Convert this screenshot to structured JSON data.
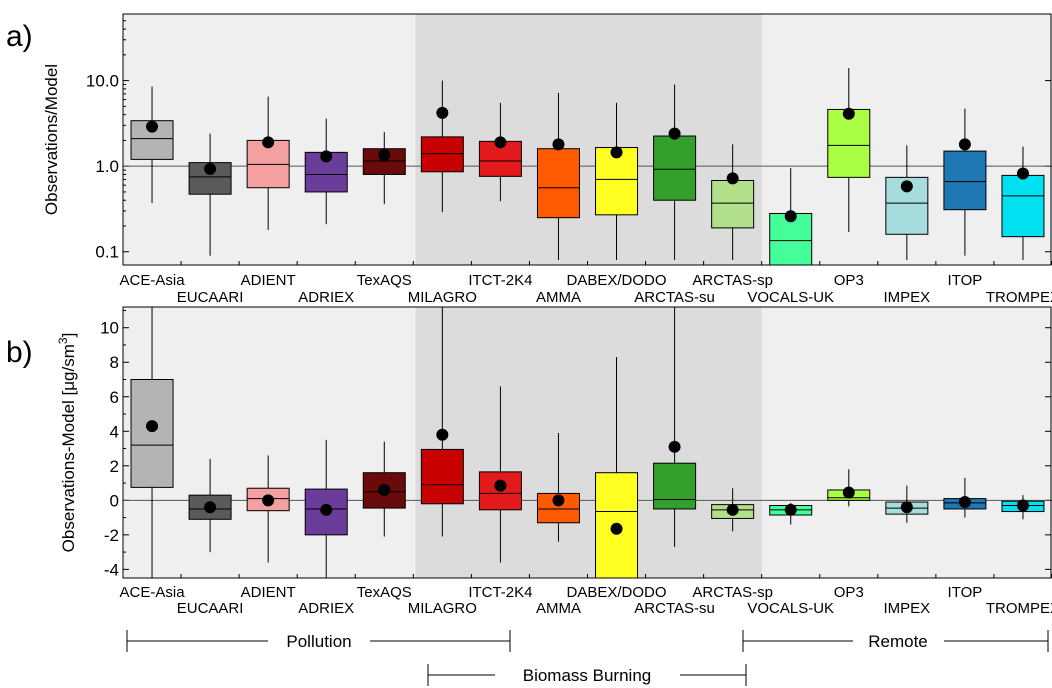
{
  "chart_data": [
    {
      "type": "box",
      "panel_label": "a)",
      "ylabel": "Observations/Model",
      "yscale": "log",
      "ylim": [
        0.07,
        60
      ],
      "yticks": [
        0.1,
        1.0,
        10.0
      ],
      "ytick_labels": [
        "0.1",
        "1.0",
        "10.0"
      ],
      "reference_line": 1.0,
      "categories": [
        "ACE-Asia",
        "EUCAARI",
        "ADIENT",
        "ADRIEX",
        "TexAQS",
        "MILAGRO",
        "ITCT-2K4",
        "AMMA",
        "DABEX/DODO",
        "ARCTAS-su",
        "ARCTAS-sp",
        "VOCALS-UK",
        "OP3",
        "IMPEX",
        "ITOP",
        "TROMPEX"
      ],
      "colors": [
        "#b4b4b4",
        "#5a5a5a",
        "#f4a0a0",
        "#6a3d9a",
        "#6b0a0a",
        "#c80000",
        "#e31a1c",
        "#ff5a00",
        "#ffff22",
        "#33a02c",
        "#b2df8a",
        "#44ff99",
        "#aaff44",
        "#a6dcdc",
        "#1f78b4",
        "#00e0f0"
      ],
      "series": [
        {
          "name": "ACE-Asia",
          "whisker_low": 0.37,
          "q1": 1.2,
          "median": 2.1,
          "q3": 3.4,
          "whisker_high": 8.5,
          "mean": 2.9
        },
        {
          "name": "EUCAARI",
          "whisker_low": 0.09,
          "q1": 0.47,
          "median": 0.75,
          "q3": 1.1,
          "whisker_high": 2.4,
          "mean": 0.93
        },
        {
          "name": "ADIENT",
          "whisker_low": 0.18,
          "q1": 0.56,
          "median": 1.05,
          "q3": 2.0,
          "whisker_high": 6.5,
          "mean": 1.9
        },
        {
          "name": "ADRIEX",
          "whisker_low": 0.21,
          "q1": 0.5,
          "median": 0.8,
          "q3": 1.45,
          "whisker_high": 3.6,
          "mean": 1.3
        },
        {
          "name": "TexAQS",
          "whisker_low": 0.36,
          "q1": 0.8,
          "median": 1.15,
          "q3": 1.6,
          "whisker_high": 2.5,
          "mean": 1.35
        },
        {
          "name": "MILAGRO",
          "whisker_low": 0.29,
          "q1": 0.86,
          "median": 1.4,
          "q3": 2.2,
          "whisker_high": 10.0,
          "mean": 4.2
        },
        {
          "name": "ITCT-2K4",
          "whisker_low": 0.39,
          "q1": 0.76,
          "median": 1.15,
          "q3": 1.95,
          "whisker_high": 5.5,
          "mean": 1.9
        },
        {
          "name": "AMMA",
          "whisker_low": 0.08,
          "q1": 0.25,
          "median": 0.56,
          "q3": 1.6,
          "whisker_high": 7.2,
          "mean": 1.8
        },
        {
          "name": "DABEX/DODO",
          "whisker_low": 0.08,
          "q1": 0.27,
          "median": 0.7,
          "q3": 1.65,
          "whisker_high": 5.5,
          "mean": 1.45
        },
        {
          "name": "ARCTAS-su",
          "whisker_low": 0.08,
          "q1": 0.4,
          "median": 0.92,
          "q3": 2.25,
          "whisker_high": 9.0,
          "mean": 2.4
        },
        {
          "name": "ARCTAS-sp",
          "whisker_low": 0.08,
          "q1": 0.19,
          "median": 0.37,
          "q3": 0.68,
          "whisker_high": 1.8,
          "mean": 0.72
        },
        {
          "name": "VOCALS-UK",
          "whisker_low": 0.07,
          "q1": 0.07,
          "median": 0.135,
          "q3": 0.28,
          "whisker_high": 0.95,
          "mean": 0.26
        },
        {
          "name": "OP3",
          "whisker_low": 0.17,
          "q1": 0.74,
          "median": 1.75,
          "q3": 4.6,
          "whisker_high": 14.0,
          "mean": 4.1
        },
        {
          "name": "IMPEX",
          "whisker_low": 0.08,
          "q1": 0.16,
          "median": 0.37,
          "q3": 0.74,
          "whisker_high": 1.75,
          "mean": 0.58
        },
        {
          "name": "ITOP",
          "whisker_low": 0.09,
          "q1": 0.31,
          "median": 0.66,
          "q3": 1.5,
          "whisker_high": 4.7,
          "mean": 1.8
        },
        {
          "name": "TROMPEX",
          "whisker_low": 0.08,
          "q1": 0.15,
          "median": 0.45,
          "q3": 0.78,
          "whisker_high": 1.7,
          "mean": 0.82
        }
      ]
    },
    {
      "type": "box",
      "panel_label": "b)",
      "ylabel_parts": [
        "Observations-Model [",
        "μg/sm",
        "3",
        "]"
      ],
      "yscale": "linear",
      "ylim": [
        -4.5,
        11.2
      ],
      "yticks": [
        -4,
        -2,
        0,
        2,
        4,
        6,
        8,
        10
      ],
      "ytick_labels": [
        "-4",
        "-2",
        "0",
        "2",
        "4",
        "6",
        "8",
        "10"
      ],
      "reference_line": 0,
      "categories": [
        "ACE-Asia",
        "EUCAARI",
        "ADIENT",
        "ADRIEX",
        "TexAQS",
        "MILAGRO",
        "ITCT-2K4",
        "AMMA",
        "DABEX/DODO",
        "ARCTAS-su",
        "ARCTAS-sp",
        "VOCALS-UK",
        "OP3",
        "IMPEX",
        "ITOP",
        "TROMPEX"
      ],
      "series": [
        {
          "name": "ACE-Asia",
          "whisker_low": -4.5,
          "q1": 0.75,
          "median": 3.2,
          "q3": 7.0,
          "whisker_high": 11.2,
          "mean": 4.3
        },
        {
          "name": "EUCAARI",
          "whisker_low": -3.0,
          "q1": -1.1,
          "median": -0.5,
          "q3": 0.3,
          "whisker_high": 2.4,
          "mean": -0.4
        },
        {
          "name": "ADIENT",
          "whisker_low": -3.6,
          "q1": -0.6,
          "median": 0.1,
          "q3": 0.7,
          "whisker_high": 2.6,
          "mean": 0.0
        },
        {
          "name": "ADRIEX",
          "whisker_low": -4.5,
          "q1": -2.0,
          "median": -0.5,
          "q3": 0.65,
          "whisker_high": 3.5,
          "mean": -0.55
        },
        {
          "name": "TexAQS",
          "whisker_low": -2.1,
          "q1": -0.45,
          "median": 0.5,
          "q3": 1.6,
          "whisker_high": 3.4,
          "mean": 0.6
        },
        {
          "name": "MILAGRO",
          "whisker_low": -2.1,
          "q1": -0.2,
          "median": 0.9,
          "q3": 2.95,
          "whisker_high": 11.2,
          "mean": 3.8
        },
        {
          "name": "ITCT-2K4",
          "whisker_low": -3.6,
          "q1": -0.55,
          "median": 0.4,
          "q3": 1.65,
          "whisker_high": 6.6,
          "mean": 0.85
        },
        {
          "name": "AMMA",
          "whisker_low": -2.4,
          "q1": -1.3,
          "median": -0.5,
          "q3": 0.4,
          "whisker_high": 3.9,
          "mean": 0.0
        },
        {
          "name": "DABEX/DODO",
          "whisker_low": -4.5,
          "q1": -4.5,
          "median": -0.65,
          "q3": 1.6,
          "whisker_high": 8.3,
          "mean": -1.65
        },
        {
          "name": "ARCTAS-su",
          "whisker_low": -2.7,
          "q1": -0.5,
          "median": 0.05,
          "q3": 2.15,
          "whisker_high": 11.2,
          "mean": 3.1
        },
        {
          "name": "ARCTAS-sp",
          "whisker_low": -1.8,
          "q1": -1.05,
          "median": -0.55,
          "q3": -0.25,
          "whisker_high": 0.7,
          "mean": -0.55
        },
        {
          "name": "VOCALS-UK",
          "whisker_low": -1.4,
          "q1": -0.85,
          "median": -0.55,
          "q3": -0.3,
          "whisker_high": -0.15,
          "mean": -0.55
        },
        {
          "name": "OP3",
          "whisker_low": -0.35,
          "q1": 0.0,
          "median": 0.15,
          "q3": 0.6,
          "whisker_high": 1.8,
          "mean": 0.45
        },
        {
          "name": "IMPEX",
          "whisker_low": -1.3,
          "q1": -0.8,
          "median": -0.45,
          "q3": -0.1,
          "whisker_high": 0.85,
          "mean": -0.4
        },
        {
          "name": "ITOP",
          "whisker_low": -1.0,
          "q1": -0.5,
          "median": -0.15,
          "q3": 0.1,
          "whisker_high": 1.3,
          "mean": -0.1
        },
        {
          "name": "TROMPEX",
          "whisker_low": -1.1,
          "q1": -0.65,
          "median": -0.3,
          "q3": -0.05,
          "whisker_high": 0.3,
          "mean": -0.3
        }
      ]
    }
  ],
  "groups": {
    "pollution": "Pollution",
    "biomass_burning": "Biomass Burning",
    "remote": "Remote"
  },
  "shading_colors": {
    "light_background": "#efefef",
    "biomass_band": "#dcdcdc"
  }
}
